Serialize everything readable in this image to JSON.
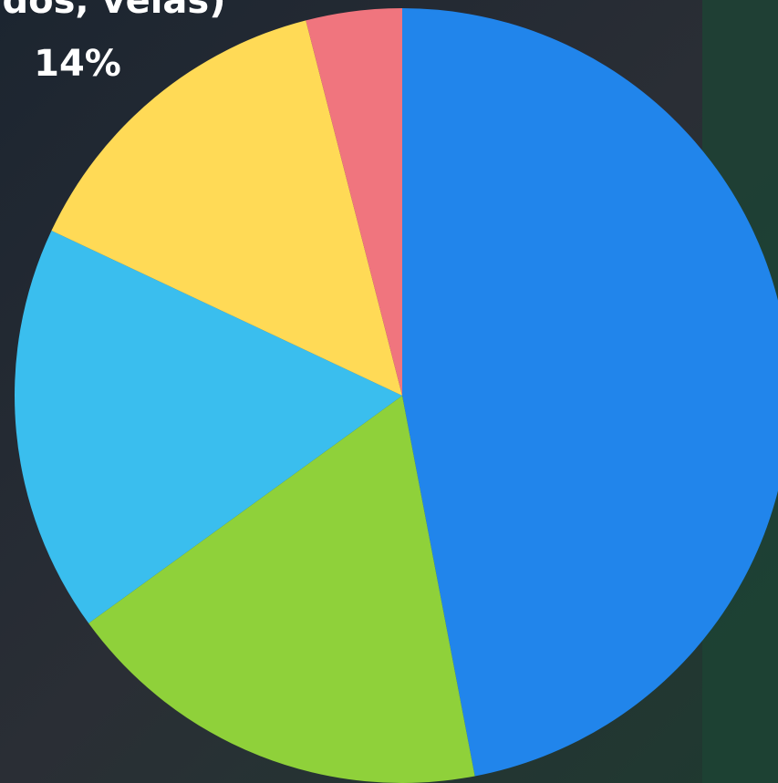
{
  "chart_data": {
    "type": "pie",
    "categories": [
      null,
      null,
      null,
      "dos, velas)",
      null
    ],
    "values": [
      47,
      18,
      17,
      14,
      4
    ],
    "value_labels": [
      null,
      null,
      null,
      "14%",
      null
    ],
    "colors": [
      "#2185eb",
      "#8fd13a",
      "#3abeee",
      "#ffda56",
      "#f0757e"
    ]
  }
}
